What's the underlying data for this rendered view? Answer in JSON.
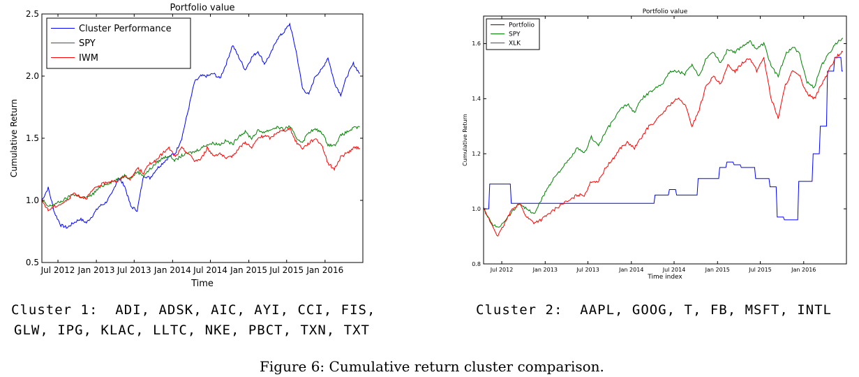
{
  "chart_data": [
    {
      "type": "line",
      "title": "Portfolio value",
      "xlabel": "Time",
      "ylabel": "Cumulative Return",
      "ylim": [
        0.5,
        2.5
      ],
      "yticks": [
        "0.5",
        "1.0",
        "1.5",
        "2.0",
        "2.5"
      ],
      "xticks": [
        "Jul 2012",
        "Jan 2013",
        "Jul 2013",
        "Jan 2014",
        "Jul 2014",
        "Jan 2015",
        "Jul 2015",
        "Jan 2016"
      ],
      "legend_position": "top-left",
      "series": [
        {
          "name": "Cluster Performance",
          "color": "#0000ff",
          "x": [
            "2012-04",
            "2012-05",
            "2012-06",
            "2012-07",
            "2012-08",
            "2012-09",
            "2012-10",
            "2012-11",
            "2012-12",
            "2013-01",
            "2013-02",
            "2013-03",
            "2013-04",
            "2013-05",
            "2013-06",
            "2013-07",
            "2013-08",
            "2013-09",
            "2013-10",
            "2013-11",
            "2013-12",
            "2014-01",
            "2014-02",
            "2014-03",
            "2014-04",
            "2014-05",
            "2014-06",
            "2014-07",
            "2014-08",
            "2014-09",
            "2014-10",
            "2014-11",
            "2014-12",
            "2015-01",
            "2015-02",
            "2015-03",
            "2015-04",
            "2015-05",
            "2015-06",
            "2015-07",
            "2015-08",
            "2015-09",
            "2015-10",
            "2015-11",
            "2015-12",
            "2016-01",
            "2016-02",
            "2016-03",
            "2016-04",
            "2016-05",
            "2016-06"
          ],
          "values": [
            1.0,
            1.1,
            0.9,
            0.8,
            0.78,
            0.82,
            0.85,
            0.82,
            0.88,
            0.95,
            0.98,
            1.05,
            1.18,
            1.12,
            0.95,
            0.92,
            1.2,
            1.18,
            1.25,
            1.3,
            1.35,
            1.38,
            1.5,
            1.72,
            1.95,
            2.0,
            2.0,
            2.02,
            1.98,
            2.1,
            2.25,
            2.15,
            2.05,
            2.15,
            2.2,
            2.1,
            2.18,
            2.3,
            2.35,
            2.42,
            2.2,
            1.9,
            1.85,
            2.0,
            2.05,
            2.15,
            1.95,
            1.85,
            2.0,
            2.1,
            2.02
          ]
        },
        {
          "name": "SPY",
          "color": "#008000",
          "x": [
            "2012-04",
            "2012-05",
            "2012-06",
            "2012-07",
            "2012-08",
            "2012-09",
            "2012-10",
            "2012-11",
            "2012-12",
            "2013-01",
            "2013-02",
            "2013-03",
            "2013-04",
            "2013-05",
            "2013-06",
            "2013-07",
            "2013-08",
            "2013-09",
            "2013-10",
            "2013-11",
            "2013-12",
            "2014-01",
            "2014-02",
            "2014-03",
            "2014-04",
            "2014-05",
            "2014-06",
            "2014-07",
            "2014-08",
            "2014-09",
            "2014-10",
            "2014-11",
            "2014-12",
            "2015-01",
            "2015-02",
            "2015-03",
            "2015-04",
            "2015-05",
            "2015-06",
            "2015-07",
            "2015-08",
            "2015-09",
            "2015-10",
            "2015-11",
            "2015-12",
            "2016-01",
            "2016-02",
            "2016-03",
            "2016-04",
            "2016-05",
            "2016-06"
          ],
          "values": [
            1.0,
            0.95,
            0.97,
            0.99,
            1.02,
            1.05,
            1.03,
            1.02,
            1.05,
            1.1,
            1.13,
            1.15,
            1.17,
            1.2,
            1.18,
            1.23,
            1.2,
            1.25,
            1.3,
            1.34,
            1.36,
            1.32,
            1.36,
            1.38,
            1.39,
            1.42,
            1.45,
            1.46,
            1.45,
            1.48,
            1.45,
            1.52,
            1.55,
            1.5,
            1.56,
            1.55,
            1.57,
            1.59,
            1.57,
            1.6,
            1.5,
            1.47,
            1.55,
            1.57,
            1.55,
            1.45,
            1.44,
            1.52,
            1.55,
            1.58,
            1.59
          ]
        },
        {
          "name": "IWM",
          "color": "#ff0000",
          "x": [
            "2012-04",
            "2012-05",
            "2012-06",
            "2012-07",
            "2012-08",
            "2012-09",
            "2012-10",
            "2012-11",
            "2012-12",
            "2013-01",
            "2013-02",
            "2013-03",
            "2013-04",
            "2013-05",
            "2013-06",
            "2013-07",
            "2013-08",
            "2013-09",
            "2013-10",
            "2013-11",
            "2013-12",
            "2014-01",
            "2014-02",
            "2014-03",
            "2014-04",
            "2014-05",
            "2014-06",
            "2014-07",
            "2014-08",
            "2014-09",
            "2014-10",
            "2014-11",
            "2014-12",
            "2015-01",
            "2015-02",
            "2015-03",
            "2015-04",
            "2015-05",
            "2015-06",
            "2015-07",
            "2015-08",
            "2015-09",
            "2015-10",
            "2015-11",
            "2015-12",
            "2016-01",
            "2016-02",
            "2016-03",
            "2016-04",
            "2016-05",
            "2016-06"
          ],
          "values": [
            1.0,
            0.92,
            0.95,
            0.97,
            1.0,
            1.06,
            1.03,
            1.02,
            1.08,
            1.12,
            1.14,
            1.16,
            1.15,
            1.2,
            1.17,
            1.26,
            1.22,
            1.3,
            1.32,
            1.38,
            1.42,
            1.35,
            1.42,
            1.38,
            1.32,
            1.33,
            1.42,
            1.36,
            1.38,
            1.33,
            1.36,
            1.42,
            1.47,
            1.42,
            1.5,
            1.52,
            1.5,
            1.55,
            1.56,
            1.58,
            1.47,
            1.42,
            1.46,
            1.5,
            1.45,
            1.3,
            1.25,
            1.35,
            1.38,
            1.42,
            1.42
          ]
        }
      ]
    },
    {
      "type": "line",
      "title": "Portfolio value",
      "xlabel": "Time index",
      "ylabel": "Cumulative Return",
      "ylim": [
        0.8,
        1.7
      ],
      "yticks": [
        "0.8",
        "1.0",
        "1.2",
        "1.4",
        "1.6"
      ],
      "xticks": [
        "Jul 2012",
        "Jan 2013",
        "Jul 2013",
        "Jan 2014",
        "Jul 2014",
        "Jan 2015",
        "Jul 2015",
        "Jan 2016"
      ],
      "legend_position": "top-left",
      "series": [
        {
          "name": "Portfolio",
          "color": "#0000ff",
          "x": [
            "2012-04",
            "2012-05",
            "2012-06",
            "2012-07",
            "2012-08",
            "2012-09",
            "2012-10",
            "2012-11",
            "2012-12",
            "2013-01",
            "2013-02",
            "2013-03",
            "2013-04",
            "2013-05",
            "2013-06",
            "2013-07",
            "2013-08",
            "2013-09",
            "2013-10",
            "2013-11",
            "2013-12",
            "2014-01",
            "2014-02",
            "2014-03",
            "2014-04",
            "2014-05",
            "2014-06",
            "2014-07",
            "2014-08",
            "2014-09",
            "2014-10",
            "2014-11",
            "2014-12",
            "2015-01",
            "2015-02",
            "2015-03",
            "2015-04",
            "2015-05",
            "2015-06",
            "2015-07",
            "2015-08",
            "2015-09",
            "2015-10",
            "2015-11",
            "2015-12",
            "2016-01",
            "2016-02",
            "2016-03",
            "2016-04",
            "2016-05",
            "2016-06"
          ],
          "values": [
            1.0,
            1.09,
            1.09,
            1.09,
            1.02,
            1.02,
            1.02,
            1.02,
            1.02,
            1.02,
            1.02,
            1.02,
            1.02,
            1.02,
            1.02,
            1.02,
            1.02,
            1.02,
            1.02,
            1.02,
            1.02,
            1.02,
            1.02,
            1.02,
            1.05,
            1.05,
            1.07,
            1.05,
            1.05,
            1.05,
            1.11,
            1.11,
            1.11,
            1.15,
            1.17,
            1.16,
            1.15,
            1.15,
            1.11,
            1.11,
            1.08,
            0.97,
            0.96,
            0.96,
            1.1,
            1.1,
            1.2,
            1.3,
            1.5,
            1.55,
            1.5
          ]
        },
        {
          "name": "SPY",
          "color": "#008000",
          "x": [
            "2012-04",
            "2012-05",
            "2012-06",
            "2012-07",
            "2012-08",
            "2012-09",
            "2012-10",
            "2012-11",
            "2012-12",
            "2013-01",
            "2013-02",
            "2013-03",
            "2013-04",
            "2013-05",
            "2013-06",
            "2013-07",
            "2013-08",
            "2013-09",
            "2013-10",
            "2013-11",
            "2013-12",
            "2014-01",
            "2014-02",
            "2014-03",
            "2014-04",
            "2014-05",
            "2014-06",
            "2014-07",
            "2014-08",
            "2014-09",
            "2014-10",
            "2014-11",
            "2014-12",
            "2015-01",
            "2015-02",
            "2015-03",
            "2015-04",
            "2015-05",
            "2015-06",
            "2015-07",
            "2015-08",
            "2015-09",
            "2015-10",
            "2015-11",
            "2015-12",
            "2016-01",
            "2016-02",
            "2016-03",
            "2016-04",
            "2016-05",
            "2016-06"
          ],
          "values": [
            1.0,
            0.95,
            0.93,
            0.96,
            0.99,
            1.02,
            1.0,
            0.98,
            1.03,
            1.08,
            1.12,
            1.15,
            1.18,
            1.22,
            1.2,
            1.26,
            1.23,
            1.28,
            1.32,
            1.36,
            1.38,
            1.35,
            1.4,
            1.42,
            1.44,
            1.46,
            1.5,
            1.5,
            1.49,
            1.52,
            1.48,
            1.55,
            1.57,
            1.53,
            1.58,
            1.57,
            1.59,
            1.61,
            1.58,
            1.6,
            1.52,
            1.48,
            1.56,
            1.59,
            1.56,
            1.46,
            1.44,
            1.52,
            1.56,
            1.6,
            1.62
          ]
        },
        {
          "name": "XLK",
          "color": "#ff0000",
          "x": [
            "2012-04",
            "2012-05",
            "2012-06",
            "2012-07",
            "2012-08",
            "2012-09",
            "2012-10",
            "2012-11",
            "2012-12",
            "2013-01",
            "2013-02",
            "2013-03",
            "2013-04",
            "2013-05",
            "2013-06",
            "2013-07",
            "2013-08",
            "2013-09",
            "2013-10",
            "2013-11",
            "2013-12",
            "2014-01",
            "2014-02",
            "2014-03",
            "2014-04",
            "2014-05",
            "2014-06",
            "2014-07",
            "2014-08",
            "2014-09",
            "2014-10",
            "2014-11",
            "2014-12",
            "2015-01",
            "2015-02",
            "2015-03",
            "2015-04",
            "2015-05",
            "2015-06",
            "2015-07",
            "2015-08",
            "2015-09",
            "2015-10",
            "2015-11",
            "2015-12",
            "2016-01",
            "2016-02",
            "2016-03",
            "2016-04",
            "2016-05",
            "2016-06"
          ],
          "values": [
            1.0,
            0.95,
            0.9,
            0.95,
            1.0,
            1.02,
            0.97,
            0.95,
            0.96,
            0.98,
            1.0,
            1.02,
            1.03,
            1.05,
            1.05,
            1.1,
            1.1,
            1.15,
            1.18,
            1.22,
            1.24,
            1.22,
            1.26,
            1.3,
            1.32,
            1.35,
            1.38,
            1.4,
            1.38,
            1.3,
            1.36,
            1.45,
            1.48,
            1.45,
            1.52,
            1.5,
            1.53,
            1.55,
            1.5,
            1.55,
            1.4,
            1.33,
            1.45,
            1.5,
            1.48,
            1.42,
            1.4,
            1.45,
            1.5,
            1.55,
            1.57
          ]
        }
      ]
    }
  ],
  "captions": {
    "cluster1_line1": "Cluster 1:  ADI, ADSK, AIC, AYI, CCI, FIS,",
    "cluster1_line2": "GLW, IPG, KLAC, LLTC, NKE, PBCT, TXN, TXT",
    "cluster2_line1": "Cluster 2:  AAPL, GOOG, T, FB, MSFT, INTL",
    "figure": "Figure 6: Cumulative return cluster comparison."
  }
}
